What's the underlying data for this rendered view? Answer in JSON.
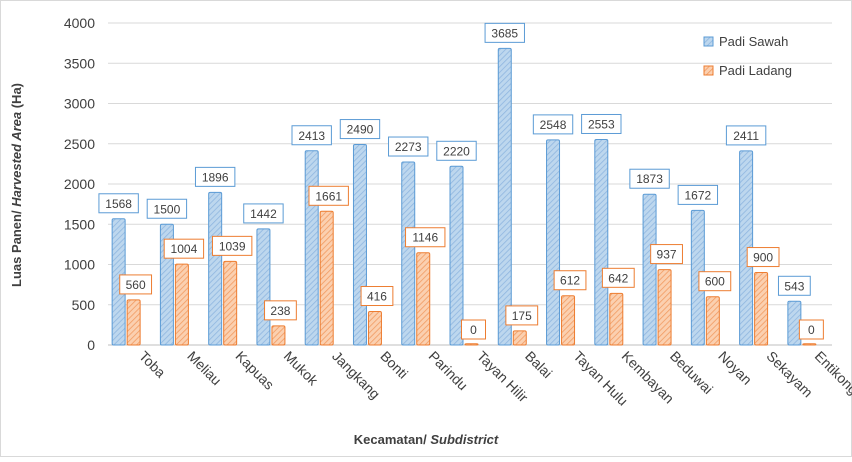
{
  "chart_data": {
    "type": "bar",
    "title": "",
    "xlabel_parts": [
      "Kecamatan/ ",
      "Subdistrict"
    ],
    "ylabel_parts": [
      "Luas Panen/ ",
      "Harvested Area",
      " (Ha)"
    ],
    "ylim": [
      0,
      4000
    ],
    "yticks": [
      0,
      500,
      1000,
      1500,
      2000,
      2500,
      3000,
      3500,
      4000
    ],
    "grid": true,
    "legend_position": "top-right",
    "categories": [
      "Toba",
      "Meliau",
      "Kapuas",
      "Mukok",
      "Jangkang",
      "Bonti",
      "Parindu",
      "Tayan Hilir",
      "Balai",
      "Tayan Hulu",
      "Kembayan",
      "Beduwai",
      "Noyan",
      "Sekayam",
      "Entikong"
    ],
    "series": [
      {
        "name": "Padi Sawah",
        "color": "#9dc3e6",
        "border": "#5b9bd5",
        "values": [
          1568,
          1500,
          1896,
          1442,
          2413,
          2490,
          2273,
          2220,
          3685,
          2548,
          2553,
          1873,
          1672,
          2411,
          543
        ]
      },
      {
        "name": "Padi Ladang",
        "color": "#f8b98f",
        "border": "#ed7d31",
        "values": [
          560,
          1004,
          1039,
          238,
          1661,
          416,
          1146,
          0,
          175,
          612,
          642,
          937,
          600,
          900,
          0
        ]
      }
    ]
  }
}
